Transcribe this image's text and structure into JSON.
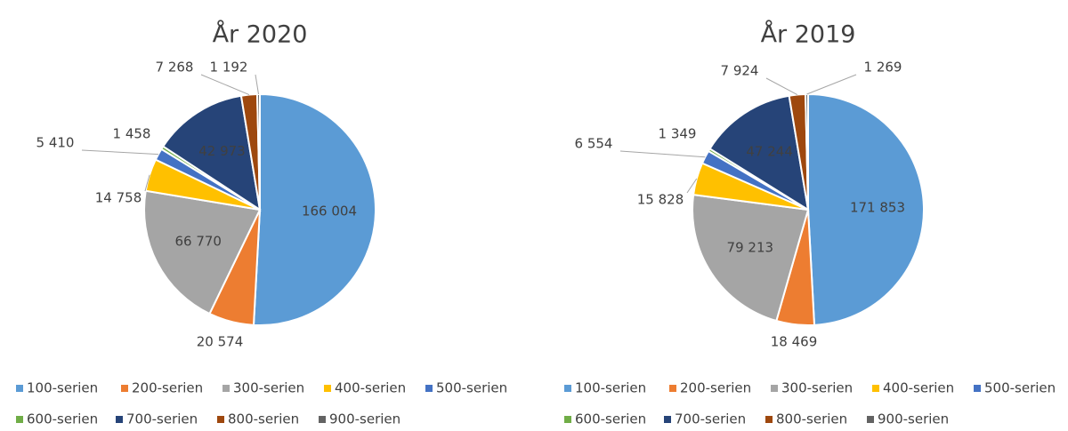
{
  "chart_data": [
    {
      "type": "pie",
      "title": "År 2020",
      "categories": [
        "100-serien",
        "200-serien",
        "300-serien",
        "400-serien",
        "500-serien",
        "600-serien",
        "700-serien",
        "800-serien",
        "900-serien"
      ],
      "values": [
        166004,
        20574,
        66770,
        14758,
        5410,
        1458,
        42973,
        7268,
        1192
      ],
      "value_labels": [
        "166 004",
        "20 574",
        "66 770",
        "14 758",
        "5 410",
        "1 458",
        "42 973",
        "7 268",
        "1 192"
      ],
      "colors": [
        "#5b9bd5",
        "#ed7d31",
        "#a5a5a5",
        "#ffc000",
        "#4472c4",
        "#70ad47",
        "#264478",
        "#9e480e",
        "#636363"
      ]
    },
    {
      "type": "pie",
      "title": "År 2019",
      "categories": [
        "100-serien",
        "200-serien",
        "300-serien",
        "400-serien",
        "500-serien",
        "600-serien",
        "700-serien",
        "800-serien",
        "900-serien"
      ],
      "values": [
        171853,
        18469,
        79213,
        15828,
        6554,
        1349,
        47244,
        7924,
        1269
      ],
      "value_labels": [
        "171 853",
        "18 469",
        "79 213",
        "15 828",
        "6 554",
        "1 349",
        "47 244",
        "7 924",
        "1 269"
      ],
      "colors": [
        "#5b9bd5",
        "#ed7d31",
        "#a5a5a5",
        "#ffc000",
        "#4472c4",
        "#70ad47",
        "#264478",
        "#9e480e",
        "#636363"
      ]
    }
  ]
}
